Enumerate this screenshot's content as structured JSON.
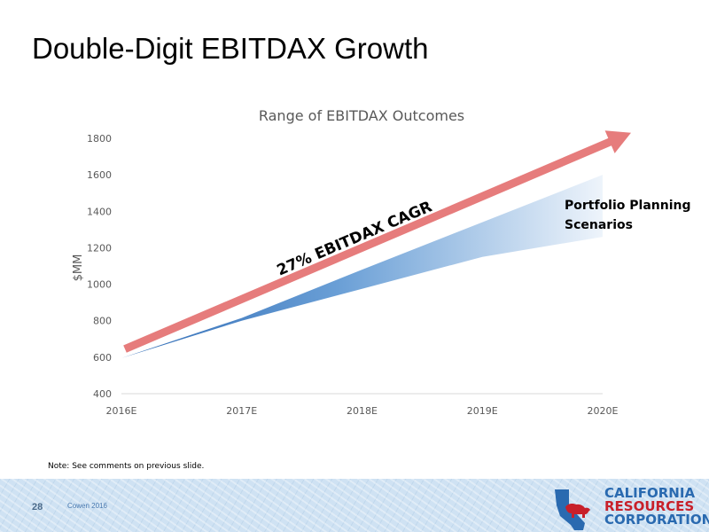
{
  "slide": {
    "title": "Double-Digit EBITDAX Growth",
    "note": "Note: See comments on previous slide.",
    "page_number": "28",
    "footer_text": "Cowen 2016"
  },
  "logo": {
    "line1": "CALIFORNIA",
    "line2": "RESOURCES",
    "line3": "CORPORATION"
  },
  "chart_data": {
    "type": "area",
    "title": "Range of EBITDAX Outcomes",
    "ylabel": "$MM",
    "xlabel": "",
    "categories": [
      "2016E",
      "2017E",
      "2018E",
      "2019E",
      "2020E"
    ],
    "ylim": [
      400,
      1800
    ],
    "yticks": [
      400,
      600,
      800,
      1000,
      1200,
      1400,
      1600,
      1800
    ],
    "series": [
      {
        "name": "Portfolio Planning Scenarios (high)",
        "values": [
          595,
          815,
          1080,
          1340,
          1600
        ]
      },
      {
        "name": "Portfolio Planning Scenarios (low)",
        "values": [
          595,
          800,
          975,
          1150,
          1260
        ]
      }
    ],
    "trend_arrow": {
      "values": [
        645,
        1830
      ]
    },
    "annotations": {
      "arrow_label": "27% EBITDAX CAGR",
      "band_label_line1": "Portfolio Planning",
      "band_label_line2": "Scenarios"
    },
    "colors": {
      "band_dark": "#3f78bd",
      "band_light": "#e6f0fa",
      "arrow": "#e67c7c",
      "axis_text": "#595959"
    },
    "grid": false
  }
}
